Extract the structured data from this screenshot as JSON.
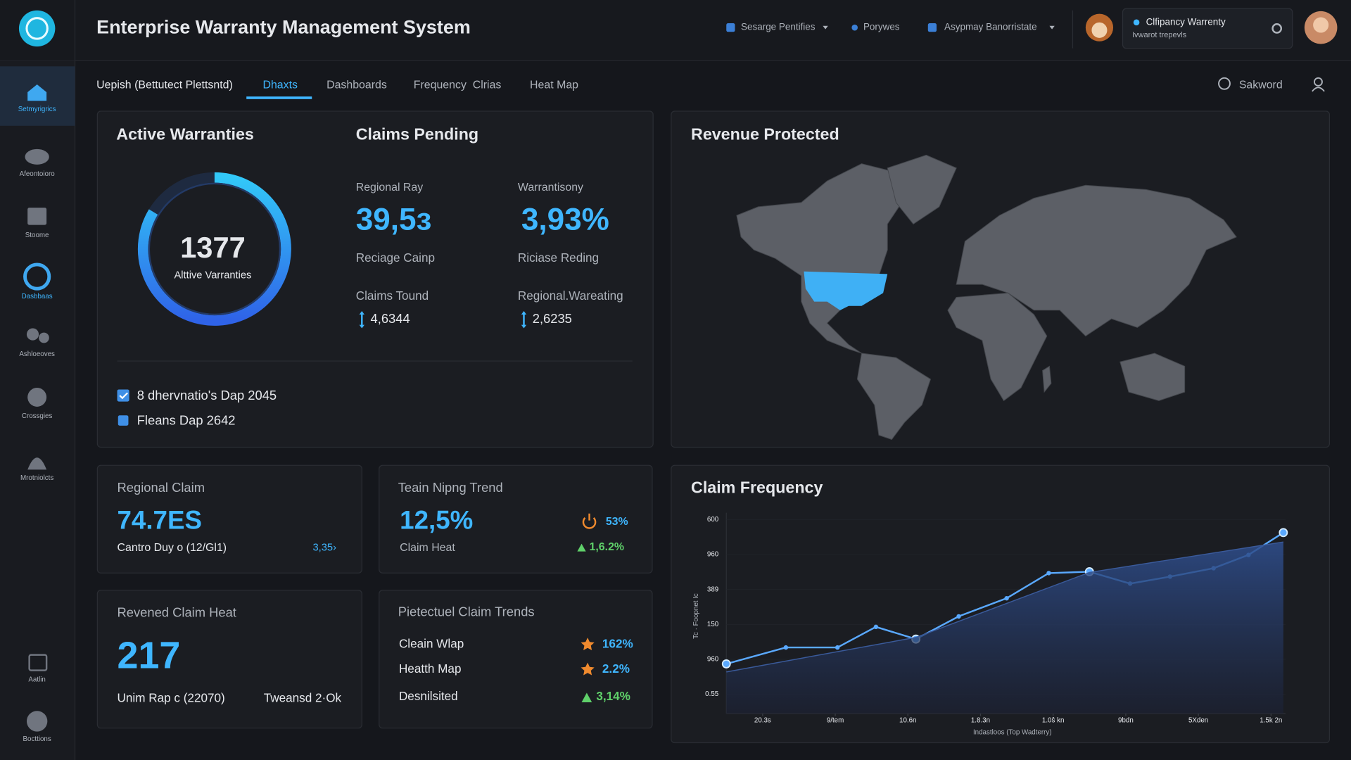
{
  "header": {
    "title": "Enterprise Warranty Management System",
    "menu": [
      "Sesarge Pentifies",
      "Porywes",
      "Asypmay Banorristate"
    ],
    "account": {
      "name": "Clfipancy Warrenty",
      "subtitle": "Ivwarot trepevls"
    }
  },
  "tabs": {
    "breadcrumb": "Uepish (Bettutect Plettsntd)",
    "items": [
      "Dhaxts",
      "Dashboards",
      "Frequency  Clrias",
      "Heat Map"
    ],
    "search": "Sakword"
  },
  "sidebar": [
    "Setmyrigrics",
    "Afeontoioro",
    "Stoome",
    "Dasbbaas",
    "Ashloeoves",
    "Crossgies",
    "Mrotniolcts",
    "Aatlin",
    "Bocttions"
  ],
  "active_warranties": {
    "title": "Active Warranties",
    "value": "1377",
    "label": "Alttive Varranties",
    "checklist": [
      "8 dhervnatio's Dap 2045",
      "Fleans Dap 2642"
    ]
  },
  "claims_pending": {
    "title": "Claims Pending",
    "columns": [
      {
        "label": "Regional Ray",
        "value": "39,5з",
        "caption": "Reciage Cainp",
        "sub_label": "Claims Tound",
        "sub_value": "4,6344"
      },
      {
        "label": "Warrantisony",
        "value": "3,93%",
        "caption": "Riciase Reding",
        "sub_label": "Regional.Wareating",
        "sub_value": "2,6235"
      }
    ]
  },
  "revenue_protected": {
    "title": "Revenue Protected"
  },
  "regional_claim": {
    "title": "Regional Claim",
    "value": "74.7ES",
    "caption": "Cantro Duy o (12/Gl1)",
    "change": "3,35›"
  },
  "trend": {
    "title": "Teain Nipng Trend",
    "value": "12,5%",
    "caption": "Claim Heat",
    "stats": [
      "53%",
      "1,6.2%"
    ]
  },
  "claim_heat": {
    "title": "Revened Claim Heat",
    "value": "217",
    "caption": "Unim Rap c (22070)",
    "note": "Tweansd 2·Ok"
  },
  "claim_trends": {
    "title": "Pietectuel Claim Trends",
    "rows": [
      {
        "label": "Cleain Wlap",
        "value": "162%"
      },
      {
        "label": "Heatth Map",
        "value": "2.2%"
      },
      {
        "label": "Desnilsited",
        "value": "3,14%"
      }
    ]
  },
  "chart_data": {
    "type": "line",
    "title": "Claim Frequency",
    "x_label": "Indastloos (Top Wadterry)",
    "y_label": "Tc · Foopnet Ic",
    "xlim": [
      0,
      7.7
    ],
    "ylim": [
      -0.55,
      5.2
    ],
    "xticks": [
      {
        "value": 0.5,
        "label": "20.3s"
      },
      {
        "value": 1.5,
        "label": "9/tem"
      },
      {
        "value": 2.5,
        "label": "10.6n"
      },
      {
        "value": 3.5,
        "label": "1.8.3n"
      },
      {
        "value": 4.5,
        "label": "1.0ŝ kn"
      },
      {
        "value": 5.5,
        "label": "9bdn"
      },
      {
        "value": 6.5,
        "label": "5Xden"
      },
      {
        "value": 7.5,
        "label": "1.5k 2n"
      }
    ],
    "yticks": [
      {
        "value": 0,
        "label": "0.55"
      },
      {
        "value": 1,
        "label": "960"
      },
      {
        "value": 2,
        "label": "150"
      },
      {
        "value": 3,
        "label": "389"
      },
      {
        "value": 4,
        "label": "960"
      },
      {
        "value": 5,
        "label": "600"
      }
    ],
    "series": [
      {
        "color": "#5aa9ff",
        "x": [
          0,
          0.82,
          1.53,
          2.06,
          2.61,
          3.2,
          3.86,
          4.44,
          5.0,
          5.56,
          6.11,
          6.71,
          7.19,
          7.67
        ],
        "values": [
          0.87,
          1.34,
          1.34,
          1.93,
          1.58,
          2.23,
          2.75,
          3.47,
          3.51,
          3.17,
          3.37,
          3.61,
          3.99,
          4.63
        ]
      },
      {
        "color": "#3a5a9a",
        "x": [
          0,
          2.61,
          5.0,
          7.67
        ],
        "values": [
          0.64,
          1.63,
          3.49,
          4.36
        ]
      }
    ]
  }
}
